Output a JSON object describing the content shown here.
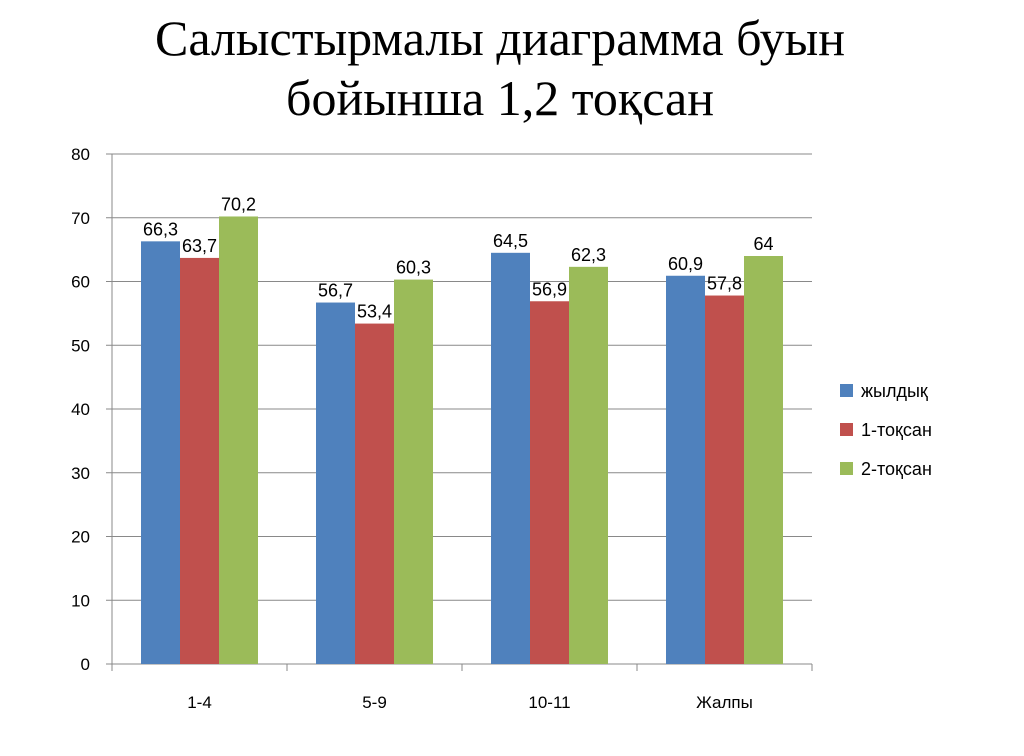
{
  "slide": {
    "title_line1": "Салыстырмалы диаграмма буын",
    "title_line2": "бойынша 1,2 тоқсан"
  },
  "chart_data": {
    "type": "bar",
    "categories": [
      "1-4",
      "5-9",
      "10-11",
      "Жалпы"
    ],
    "series": [
      {
        "name": "жылдық",
        "color": "#4f81bd",
        "values": [
          66.3,
          56.7,
          64.5,
          60.9
        ],
        "labels": [
          "66,3",
          "56,7",
          "64,5",
          "60,9"
        ]
      },
      {
        "name": "1-тоқсан",
        "color": "#c0504d",
        "values": [
          63.7,
          53.4,
          56.9,
          57.8
        ],
        "labels": [
          "63,7",
          "53,4",
          "56,9",
          "57,8"
        ]
      },
      {
        "name": "2-тоқсан",
        "color": "#9bbb59",
        "values": [
          70.2,
          60.3,
          62.3,
          64
        ],
        "labels": [
          "70,2",
          "60,3",
          "62,3",
          "64"
        ]
      }
    ],
    "ylim": [
      0,
      80
    ],
    "yticks": [
      0,
      10,
      20,
      30,
      40,
      50,
      60,
      70,
      80
    ],
    "grid": true,
    "legend_position": "right"
  }
}
